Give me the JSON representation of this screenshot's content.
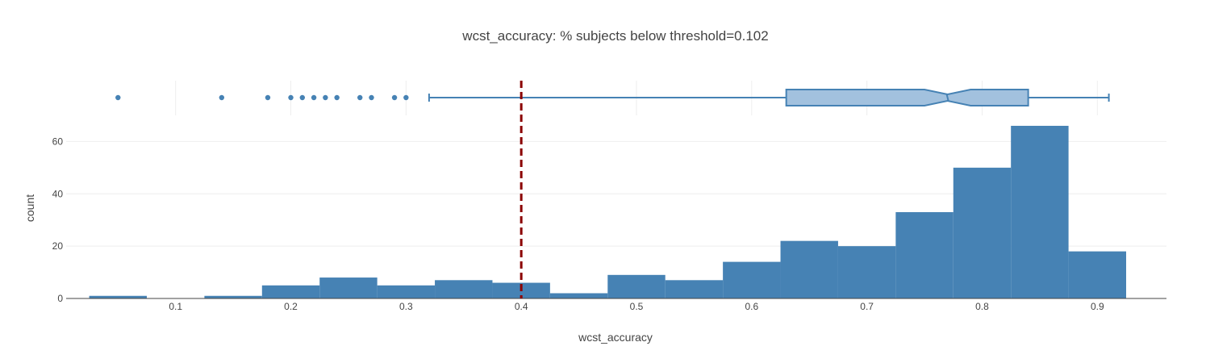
{
  "chart_data": {
    "type": "histogram",
    "title": "wcst_accuracy: % subjects below threshold=0.102",
    "xlabel": "wcst_accuracy",
    "ylabel": "count",
    "xlim": [
      0.005,
      0.96
    ],
    "ylim": [
      0,
      70
    ],
    "x_ticks": [
      "0.1",
      "0.2",
      "0.3",
      "0.4",
      "0.5",
      "0.6",
      "0.7",
      "0.8",
      "0.9"
    ],
    "x_tick_values": [
      0.1,
      0.2,
      0.3,
      0.4,
      0.5,
      0.6,
      0.7,
      0.8,
      0.9
    ],
    "y_ticks": [
      "0",
      "20",
      "40",
      "60"
    ],
    "y_tick_values": [
      0,
      20,
      40,
      60
    ],
    "grid": true,
    "bin_edges": [
      0.025,
      0.075,
      0.125,
      0.175,
      0.225,
      0.275,
      0.325,
      0.375,
      0.425,
      0.475,
      0.525,
      0.575,
      0.625,
      0.675,
      0.725,
      0.775,
      0.825,
      0.875,
      0.925
    ],
    "values": [
      1,
      0,
      1,
      5,
      8,
      5,
      7,
      6,
      2,
      9,
      7,
      14,
      22,
      20,
      33,
      50,
      66,
      18
    ],
    "bar_color": "#4682b4",
    "threshold": {
      "x": 0.4,
      "color": "#8b0000"
    },
    "box": {
      "q1": 0.63,
      "median": 0.77,
      "q3": 0.84,
      "notch_low": 0.75,
      "notch_high": 0.79,
      "whisker_low": 0.32,
      "whisker_high": 0.91,
      "outliers": [
        0.05,
        0.14,
        0.18,
        0.2,
        0.21,
        0.22,
        0.23,
        0.24,
        0.26,
        0.27,
        0.29,
        0.3
      ],
      "line_color": "#4682b4",
      "fill_color": "#a2c1de"
    }
  }
}
